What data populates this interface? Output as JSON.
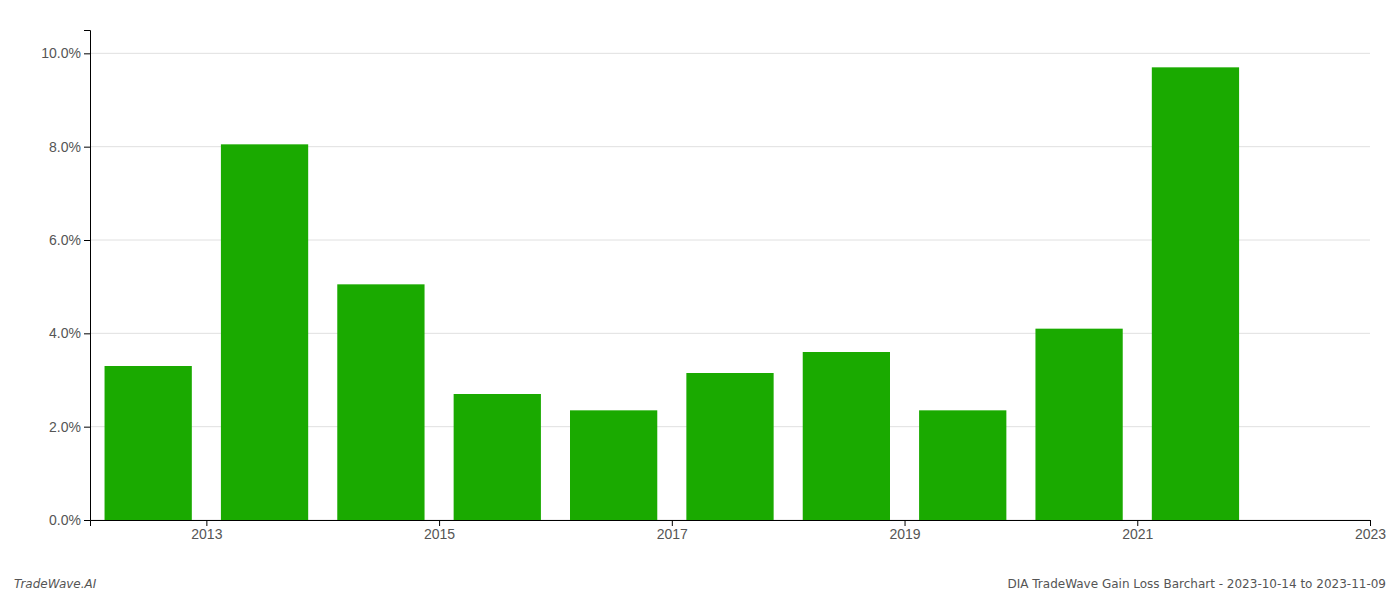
{
  "chart_data": {
    "type": "bar",
    "x": [
      2013,
      2014,
      2015,
      2016,
      2017,
      2018,
      2019,
      2020,
      2021,
      2022
    ],
    "values": [
      0.033,
      0.0805,
      0.0505,
      0.027,
      0.0235,
      0.0315,
      0.036,
      0.0235,
      0.041,
      0.097
    ],
    "color": "#1aaa00",
    "xlim": [
      2012.5,
      2023.5
    ],
    "xticks": [
      {
        "value": 2013.5,
        "label": "2013"
      },
      {
        "value": 2015.5,
        "label": "2015"
      },
      {
        "value": 2017.5,
        "label": "2017"
      },
      {
        "value": 2019.5,
        "label": "2019"
      },
      {
        "value": 2021.5,
        "label": "2021"
      },
      {
        "value": 2023.5,
        "label": "2023"
      }
    ],
    "ylim": [
      0.0,
      0.105
    ],
    "yticks": [
      {
        "value": 0.0,
        "label": "0.0%"
      },
      {
        "value": 0.02,
        "label": "2.0%"
      },
      {
        "value": 0.04,
        "label": "4.0%"
      },
      {
        "value": 0.06,
        "label": "6.0%"
      },
      {
        "value": 0.08,
        "label": "8.0%"
      },
      {
        "value": 0.1,
        "label": "10.0%"
      }
    ],
    "grid": true,
    "annotations": [
      "TradeWave.AI",
      "DIA TradeWave Gain Loss Barchart - 2023-10-14 to 2023-11-09"
    ]
  }
}
